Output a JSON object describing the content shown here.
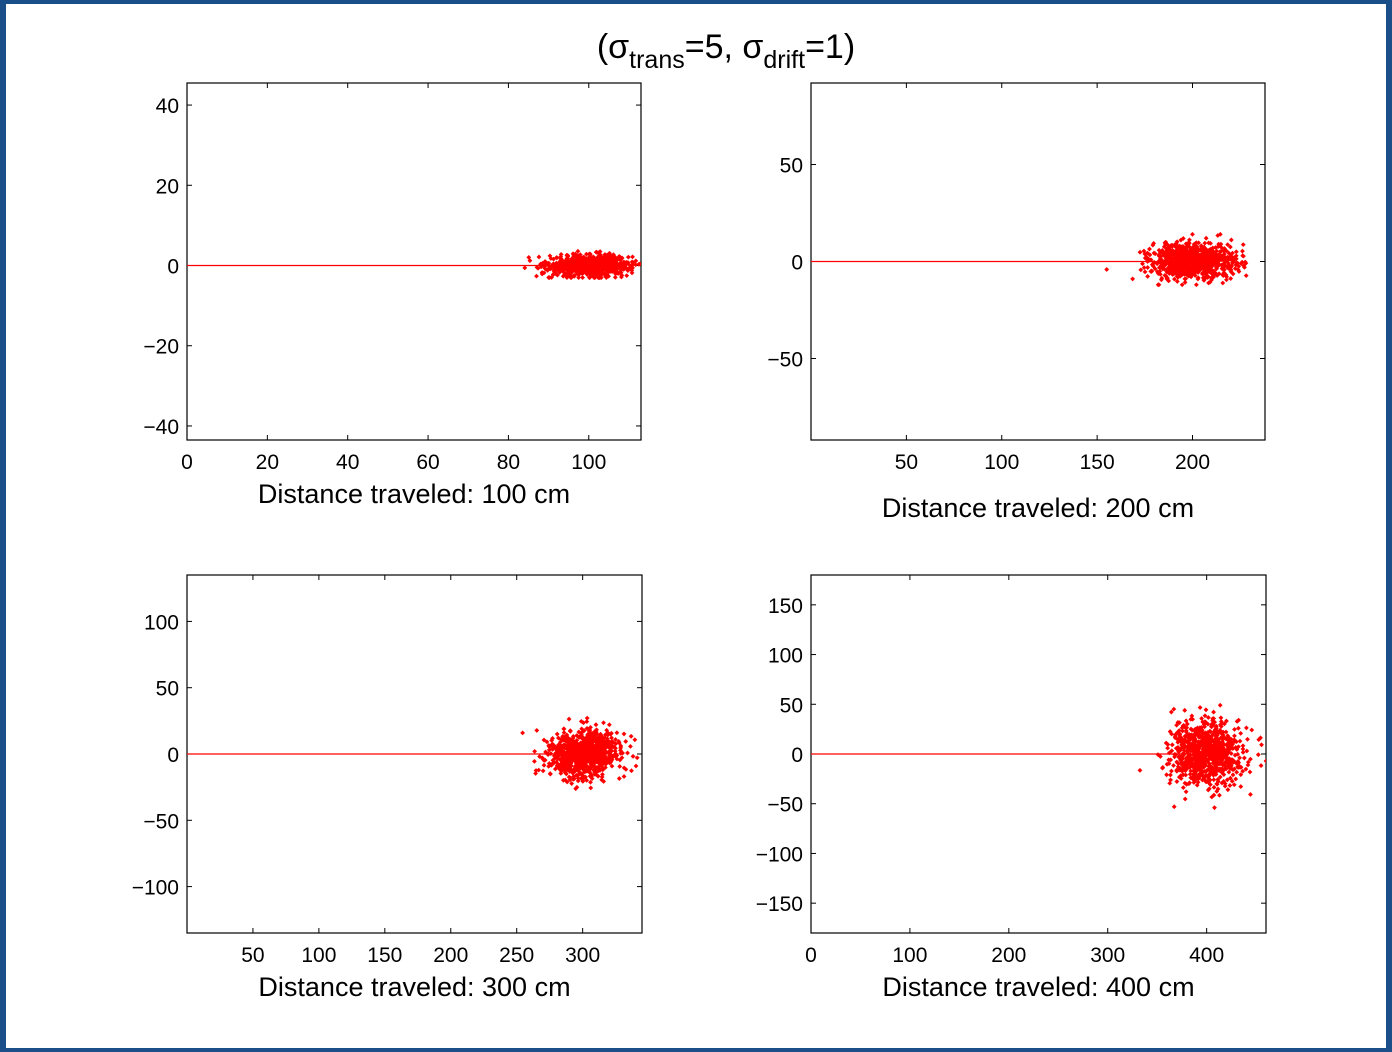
{
  "figure": {
    "title_parts": {
      "open": "(",
      "sigma1": "σ",
      "sub1": "trans",
      "mid": "=5, ",
      "sigma2": "σ",
      "sub2": "drift",
      "close": "=1)"
    }
  },
  "colors": {
    "background": "#1b4f8a",
    "paper": "#ffffff",
    "data": "#ff0000",
    "axis": "#000000"
  },
  "chart_data": [
    {
      "type": "scatter",
      "xlabel": "Distance traveled: 100 cm",
      "xlim": [
        0,
        113
      ],
      "ylim": [
        -43.5,
        45.5
      ],
      "xticks": [
        0,
        20,
        40,
        60,
        80,
        100
      ],
      "yticks": [
        -40,
        -20,
        0,
        20,
        40
      ],
      "path": {
        "x": [
          0,
          100
        ],
        "y": [
          0,
          0
        ]
      },
      "cloud": {
        "center": [
          100,
          0
        ],
        "sd_x": 5,
        "sd_y": 1.3,
        "x_range": [
          80,
          113
        ],
        "y_range": [
          -3,
          5
        ],
        "n": 900
      }
    },
    {
      "type": "scatter",
      "xlabel": "Distance traveled: 200 cm",
      "xlim": [
        0,
        238
      ],
      "ylim": [
        -92,
        92
      ],
      "xticks": [
        50,
        100,
        150,
        200
      ],
      "yticks": [
        -50,
        0,
        50
      ],
      "path": {
        "x": [
          0,
          200
        ],
        "y": [
          0,
          0
        ]
      },
      "cloud": {
        "center": [
          200,
          0
        ],
        "sd_x": 11,
        "sd_y": 4.5,
        "x_range": [
          155,
          238
        ],
        "y_range": [
          -12,
          14
        ],
        "n": 900
      }
    },
    {
      "type": "scatter",
      "xlabel": "Distance traveled: 300 cm",
      "xlim": [
        0,
        345
      ],
      "ylim": [
        -135,
        135
      ],
      "xticks": [
        50,
        100,
        150,
        200,
        250,
        300
      ],
      "yticks": [
        -100,
        -50,
        0,
        50,
        100
      ],
      "path": {
        "x": [
          0,
          300
        ],
        "y": [
          0,
          0
        ]
      },
      "cloud": {
        "center": [
          300,
          0
        ],
        "sd_x": 14,
        "sd_y": 9,
        "x_range": [
          252,
          345
        ],
        "y_range": [
          -30,
          32
        ],
        "n": 900
      }
    },
    {
      "type": "scatter",
      "xlabel": "Distance traveled: 400 cm",
      "xlim": [
        0,
        460
      ],
      "ylim": [
        -180,
        180
      ],
      "xticks": [
        0,
        100,
        200,
        300,
        400
      ],
      "yticks": [
        -150,
        -100,
        -50,
        0,
        50,
        100,
        150
      ],
      "path": {
        "x": [
          0,
          400
        ],
        "y": [
          0,
          0
        ]
      },
      "cloud": {
        "center": [
          400,
          0
        ],
        "sd_x": 18,
        "sd_y": 17,
        "x_range": [
          315,
          460
        ],
        "y_range": [
          -60,
          60
        ],
        "n": 900
      }
    }
  ]
}
